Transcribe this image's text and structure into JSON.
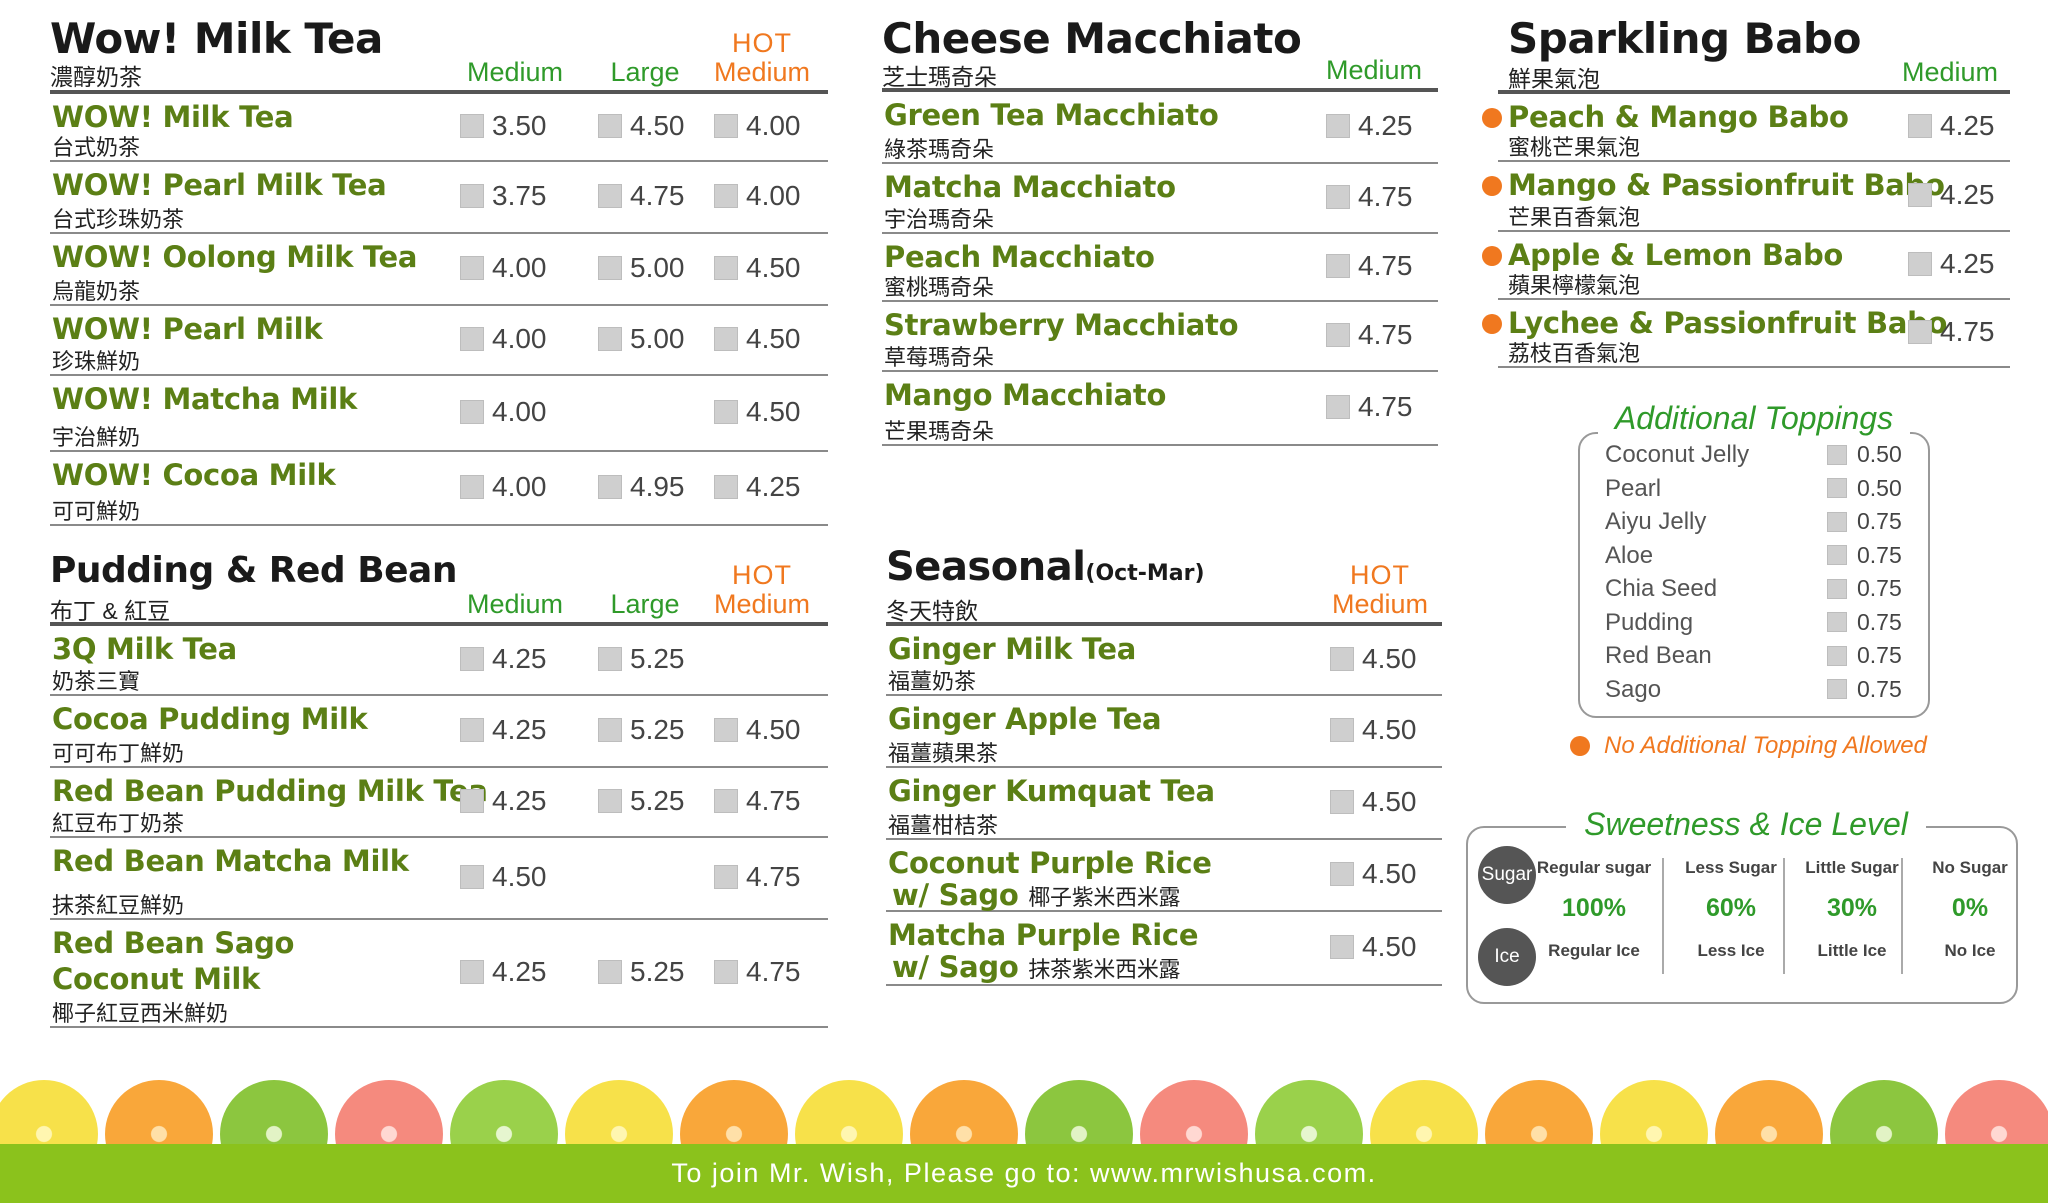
{
  "milk_tea": {
    "title": "Wow! Milk Tea",
    "zh": "濃醇奶茶",
    "col_medium": "Medium",
    "col_large": "Large",
    "col_hot": "HOT",
    "col_hot_medium": "Medium",
    "items": [
      {
        "name": "WOW! Milk Tea",
        "zh": "台式奶茶",
        "medium": "3.50",
        "large": "4.50",
        "hot": "4.00"
      },
      {
        "name": "WOW! Pearl Milk Tea",
        "zh": "台式珍珠奶茶",
        "medium": "3.75",
        "large": "4.75",
        "hot": "4.00"
      },
      {
        "name": "WOW! Oolong Milk Tea",
        "zh": "烏龍奶茶",
        "medium": "4.00",
        "large": "5.00",
        "hot": "4.50"
      },
      {
        "name": "WOW! Pearl Milk",
        "zh": "珍珠鮮奶",
        "medium": "4.00",
        "large": "5.00",
        "hot": "4.50"
      },
      {
        "name": "WOW! Matcha Milk",
        "zh": "宇治鮮奶",
        "medium": "4.00",
        "large": "",
        "hot": "4.50"
      },
      {
        "name": "WOW! Cocoa Milk",
        "zh": "可可鮮奶",
        "medium": "4.00",
        "large": "4.95",
        "hot": "4.25"
      }
    ]
  },
  "pudding": {
    "title": "Pudding & Red Bean",
    "zh": "布丁 & 紅豆",
    "col_medium": "Medium",
    "col_large": "Large",
    "col_hot": "HOT",
    "col_hot_medium": "Medium",
    "items": [
      {
        "name": "3Q Milk Tea",
        "name2": "",
        "zh": "奶茶三寶",
        "medium": "4.25",
        "large": "5.25",
        "hot": ""
      },
      {
        "name": "Cocoa Pudding Milk",
        "name2": "",
        "zh": "可可布丁鮮奶",
        "medium": "4.25",
        "large": "5.25",
        "hot": "4.50"
      },
      {
        "name": "Red Bean Pudding Milk Tea",
        "name2": "",
        "zh": "紅豆布丁奶茶",
        "medium": "4.25",
        "large": "5.25",
        "hot": "4.75"
      },
      {
        "name": "Red Bean Matcha Milk",
        "name2": "",
        "zh": "抹茶紅豆鮮奶",
        "medium": "4.50",
        "large": "",
        "hot": "4.75"
      },
      {
        "name": "Red Bean Sago",
        "name2": "Coconut Milk",
        "zh": "椰子紅豆西米鮮奶",
        "medium": "4.25",
        "large": "5.25",
        "hot": "4.75"
      }
    ]
  },
  "cheese": {
    "title": "Cheese Macchiato",
    "zh": "芝士瑪奇朵",
    "col_medium": "Medium",
    "items": [
      {
        "name": "Green Tea Macchiato",
        "zh": "綠茶瑪奇朵",
        "medium": "4.25"
      },
      {
        "name": "Matcha Macchiato",
        "zh": "宇治瑪奇朵",
        "medium": "4.75"
      },
      {
        "name": "Peach Macchiato",
        "zh": "蜜桃瑪奇朵",
        "medium": "4.75"
      },
      {
        "name": "Strawberry Macchiato",
        "zh": "草莓瑪奇朵",
        "medium": "4.75"
      },
      {
        "name": "Mango Macchiato",
        "zh": "芒果瑪奇朵",
        "medium": "4.75"
      }
    ]
  },
  "seasonal": {
    "title": "Seasonal",
    "title_suffix": "(Oct-Mar)",
    "zh": "冬天特飲",
    "col_hot": "HOT",
    "col_hot_medium": "Medium",
    "items": [
      {
        "name": "Ginger Milk Tea",
        "name2": "",
        "zh": "福薑奶茶",
        "zh_inline": "",
        "hot": "4.50"
      },
      {
        "name": "Ginger Apple Tea",
        "name2": "",
        "zh": "福薑蘋果茶",
        "zh_inline": "",
        "hot": "4.50"
      },
      {
        "name": "Ginger Kumquat Tea",
        "name2": "",
        "zh": "福薑柑桔茶",
        "zh_inline": "",
        "hot": "4.50"
      },
      {
        "name": "Coconut Purple Rice",
        "name2": "w/ Sago",
        "zh": "",
        "zh_inline": "椰子紫米西米露",
        "hot": "4.50"
      },
      {
        "name": "Matcha Purple Rice",
        "name2": "w/ Sago",
        "zh": "",
        "zh_inline": "抹茶紫米西米露",
        "hot": "4.50"
      }
    ]
  },
  "sparkling": {
    "title": "Sparkling Babo",
    "zh": "鮮果氣泡",
    "col_medium": "Medium",
    "items": [
      {
        "name": "Peach & Mango Babo",
        "zh": "蜜桃芒果氣泡",
        "medium": "4.25"
      },
      {
        "name": "Mango & Passionfruit Babo",
        "zh": "芒果百香氣泡",
        "medium": "4.25"
      },
      {
        "name": "Apple & Lemon Babo",
        "zh": "蘋果檸檬氣泡",
        "medium": "4.25"
      },
      {
        "name": "Lychee & Passionfruit Babo",
        "zh": "荔枝百香氣泡",
        "medium": "4.75"
      }
    ]
  },
  "toppings": {
    "title": "Additional Toppings",
    "items": [
      {
        "name": "Coconut Jelly",
        "price": "0.50"
      },
      {
        "name": "Pearl",
        "price": "0.50"
      },
      {
        "name": "Aiyu Jelly",
        "price": "0.75"
      },
      {
        "name": "Aloe",
        "price": "0.75"
      },
      {
        "name": "Chia Seed",
        "price": "0.75"
      },
      {
        "name": "Pudding",
        "price": "0.75"
      },
      {
        "name": "Red Bean",
        "price": "0.75"
      },
      {
        "name": "Sago",
        "price": "0.75"
      }
    ],
    "note": "No Additional Topping Allowed"
  },
  "sweetness": {
    "title": "Sweetness & Ice Level",
    "sugar_badge": "Sugar",
    "ice_badge": "Ice",
    "levels": [
      {
        "sugar": "Regular sugar",
        "pct": "100%",
        "ice": "Regular Ice"
      },
      {
        "sugar": "Less Sugar",
        "pct": "60%",
        "ice": "Less Ice"
      },
      {
        "sugar": "Little Sugar",
        "pct": "30%",
        "ice": "Little Ice"
      },
      {
        "sugar": "No Sugar",
        "pct": "0%",
        "ice": "No Ice"
      }
    ]
  },
  "footer": {
    "text": "To join Mr. Wish, Please go to: www.mrwishusa.com."
  },
  "colors": {
    "accent_green": "#2f9a2a",
    "item_green": "#5b7f15",
    "hot_orange": "#f0781f",
    "footer_green": "#8bc21c"
  }
}
